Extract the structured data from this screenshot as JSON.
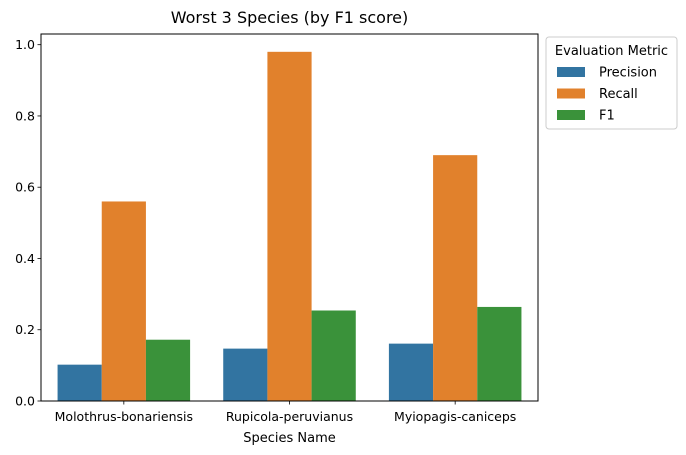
{
  "chart_data": {
    "type": "bar",
    "title": "Worst 3 Species (by F1 score)",
    "xlabel": "Species Name",
    "ylabel": "",
    "ylim": [
      0,
      1.03
    ],
    "yticks": [
      "0.0",
      "0.2",
      "0.4",
      "0.6",
      "0.8",
      "1.0"
    ],
    "categories": [
      "Molothrus-bonariensis",
      "Rupicola-peruvianus",
      "Myiopagis-caniceps"
    ],
    "series": [
      {
        "name": "Precision",
        "color": "#3274a1",
        "values": [
          0.102,
          0.147,
          0.161
        ]
      },
      {
        "name": "Recall",
        "color": "#e1812c",
        "values": [
          0.56,
          0.98,
          0.69
        ]
      },
      {
        "name": "F1",
        "color": "#3a923a",
        "values": [
          0.172,
          0.254,
          0.264
        ]
      }
    ],
    "legend": {
      "title": "Evaluation Metric",
      "placement": "outside-right-top"
    },
    "grid": false
  }
}
